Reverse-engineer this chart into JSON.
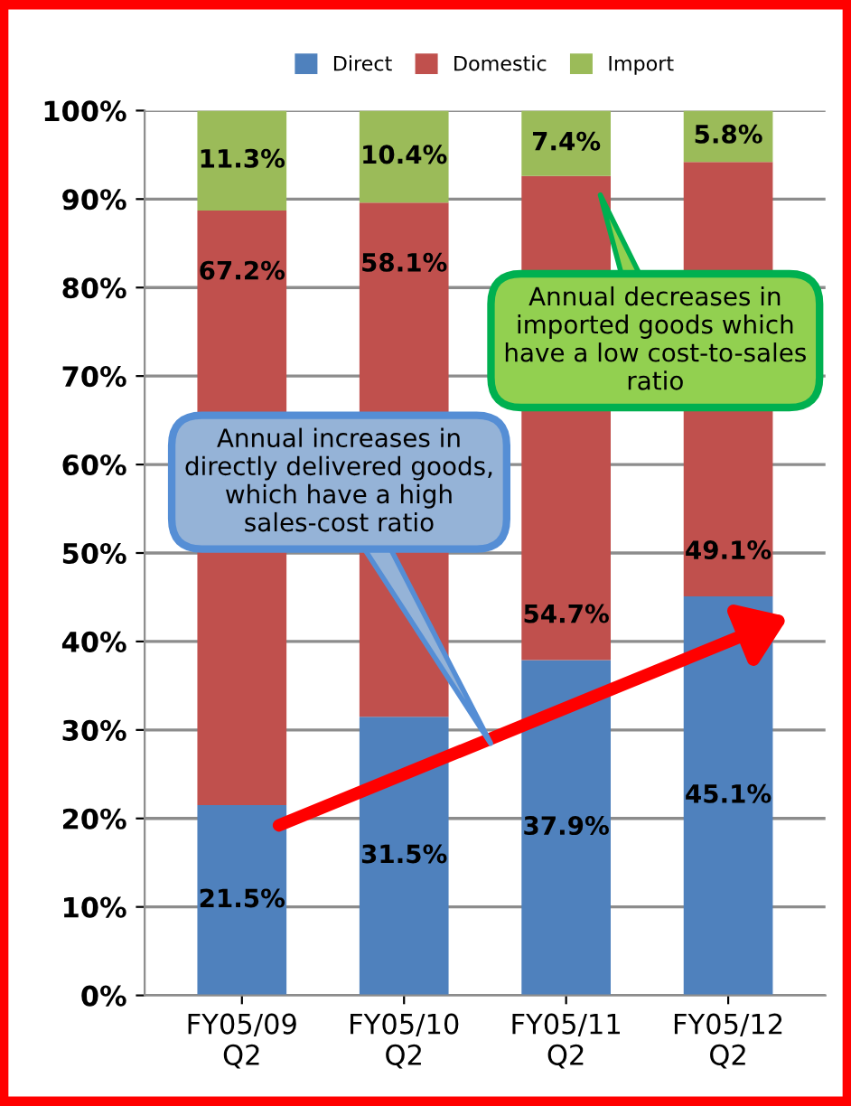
{
  "chart_data": {
    "type": "bar",
    "stacked": true,
    "categories": [
      "FY05/09\nQ2",
      "FY05/10\nQ2",
      "FY05/11\nQ2",
      "FY05/12\nQ2"
    ],
    "series": [
      {
        "name": "Direct",
        "color": "#4f81bd",
        "values": [
          21.5,
          31.5,
          37.9,
          45.1
        ],
        "value_labels": [
          "21.5%",
          "31.5%",
          "37.9%",
          "45.1%"
        ]
      },
      {
        "name": "Domestic",
        "color": "#c0504d",
        "values": [
          67.2,
          58.1,
          54.7,
          49.1
        ],
        "value_labels": [
          "67.2%",
          "58.1%",
          "54.7%",
          "49.1%"
        ]
      },
      {
        "name": "Import",
        "color": "#9bbb59",
        "values": [
          11.3,
          10.4,
          7.4,
          5.8
        ],
        "value_labels": [
          "11.3%",
          "10.4%",
          "7.4%",
          "5.8%"
        ]
      }
    ],
    "ylim": [
      0,
      100
    ],
    "yticks": [
      {
        "value": 0,
        "label": "0%"
      },
      {
        "value": 10,
        "label": "10%"
      },
      {
        "value": 20,
        "label": "20%"
      },
      {
        "value": 30,
        "label": "30%"
      },
      {
        "value": 40,
        "label": "40%"
      },
      {
        "value": 50,
        "label": "50%"
      },
      {
        "value": 60,
        "label": "60%"
      },
      {
        "value": 70,
        "label": "70%"
      },
      {
        "value": 80,
        "label": "80%"
      },
      {
        "value": 90,
        "label": "90%"
      },
      {
        "value": 100,
        "label": "100%"
      }
    ],
    "grid": "y",
    "legend": "top",
    "annotations": [
      "Annual increases in directly delivered goods, which have a high sales-cost ratio",
      "Annual decreases in imported goods which have a low cost-to-sales ratio"
    ]
  }
}
